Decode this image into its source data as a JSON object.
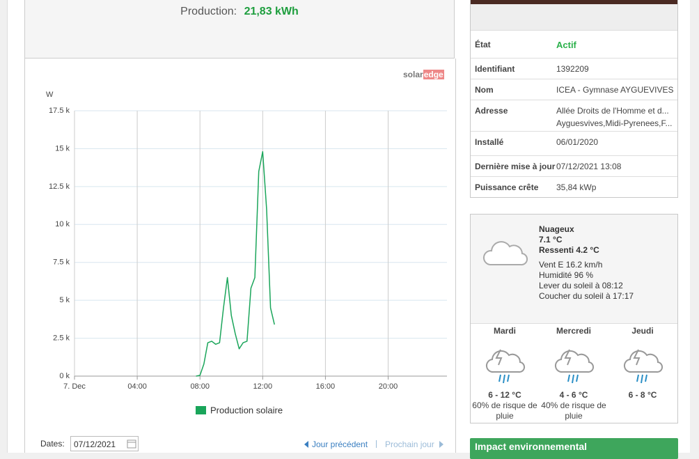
{
  "production": {
    "label": "Production:",
    "value": "21,83 kWh"
  },
  "logo": {
    "left": "solar",
    "right": "edge"
  },
  "chart_data": {
    "type": "line",
    "y_label": "W",
    "x": [
      7.75,
      8,
      8.25,
      8.5,
      8.75,
      9,
      9.25,
      9.5,
      9.75,
      10,
      10.25,
      10.5,
      10.75,
      11,
      11.25,
      11.5,
      11.75,
      12,
      12.25,
      12.5,
      12.75
    ],
    "series": [
      {
        "name": "Production solaire",
        "color": "#1aa55a",
        "values": [
          0,
          50,
          800,
          2200,
          2300,
          2100,
          2200,
          4500,
          6500,
          4000,
          2800,
          1800,
          2200,
          2300,
          5800,
          6500,
          13500,
          14800,
          11000,
          4500,
          3400
        ]
      }
    ],
    "xlim": [
      0,
      23.75
    ],
    "xticks": [
      {
        "value": 0,
        "label": "7. Dec"
      },
      {
        "value": 4,
        "label": "04:00"
      },
      {
        "value": 8,
        "label": "08:00"
      },
      {
        "value": 12,
        "label": "12:00"
      },
      {
        "value": 16,
        "label": "16:00"
      },
      {
        "value": 20,
        "label": "20:00"
      }
    ],
    "ylim": [
      0,
      17500
    ],
    "yticks": [
      {
        "value": 0,
        "label": "0 k"
      },
      {
        "value": 2500,
        "label": "2.5 k"
      },
      {
        "value": 5000,
        "label": "5 k"
      },
      {
        "value": 7500,
        "label": "7.5 k"
      },
      {
        "value": 10000,
        "label": "10 k"
      },
      {
        "value": 12500,
        "label": "12.5 k"
      },
      {
        "value": 15000,
        "label": "15 k"
      },
      {
        "value": 17500,
        "label": "17.5 k"
      }
    ],
    "grid": true
  },
  "dates": {
    "label": "Dates:",
    "value": "07/12/2021",
    "previous": "Jour précédent",
    "next": "Prochain jour"
  },
  "info": {
    "rows": [
      [
        "État",
        "Actif"
      ],
      [
        "Identifiant",
        "1392209"
      ],
      [
        "Nom",
        "ICEA - Gymnase AYGUEVIVES"
      ],
      [
        "Adresse",
        "Allée Droits de l'Homme et d...",
        "Ayguesvives,Midi-Pyrenees,F..."
      ],
      [
        "Installé",
        "06/01/2020"
      ],
      [
        "Dernière mise à jour",
        "07/12/2021 13:08"
      ],
      [
        "Puissance crête",
        "35,84 kWp"
      ]
    ]
  },
  "weather": {
    "condition": "Nuageux",
    "temperature": "7.1 °C",
    "feels_like": "Ressenti 4.2 °C",
    "details": [
      "Vent E 16.2 km/h",
      "Humidité 96 %",
      "Lever du soleil à 08:12",
      "Coucher du soleil à 17:17"
    ],
    "forecast": [
      {
        "day": "Mardi",
        "temps": "6 - 12 °C",
        "rain": "60% de risque de pluie"
      },
      {
        "day": "Mercredi",
        "temps": "4 - 6 °C",
        "rain": "40% de risque de pluie"
      },
      {
        "day": "Jeudi",
        "temps": "6 - 8 °C"
      }
    ]
  },
  "impact": {
    "title": "Impact environnemental"
  }
}
